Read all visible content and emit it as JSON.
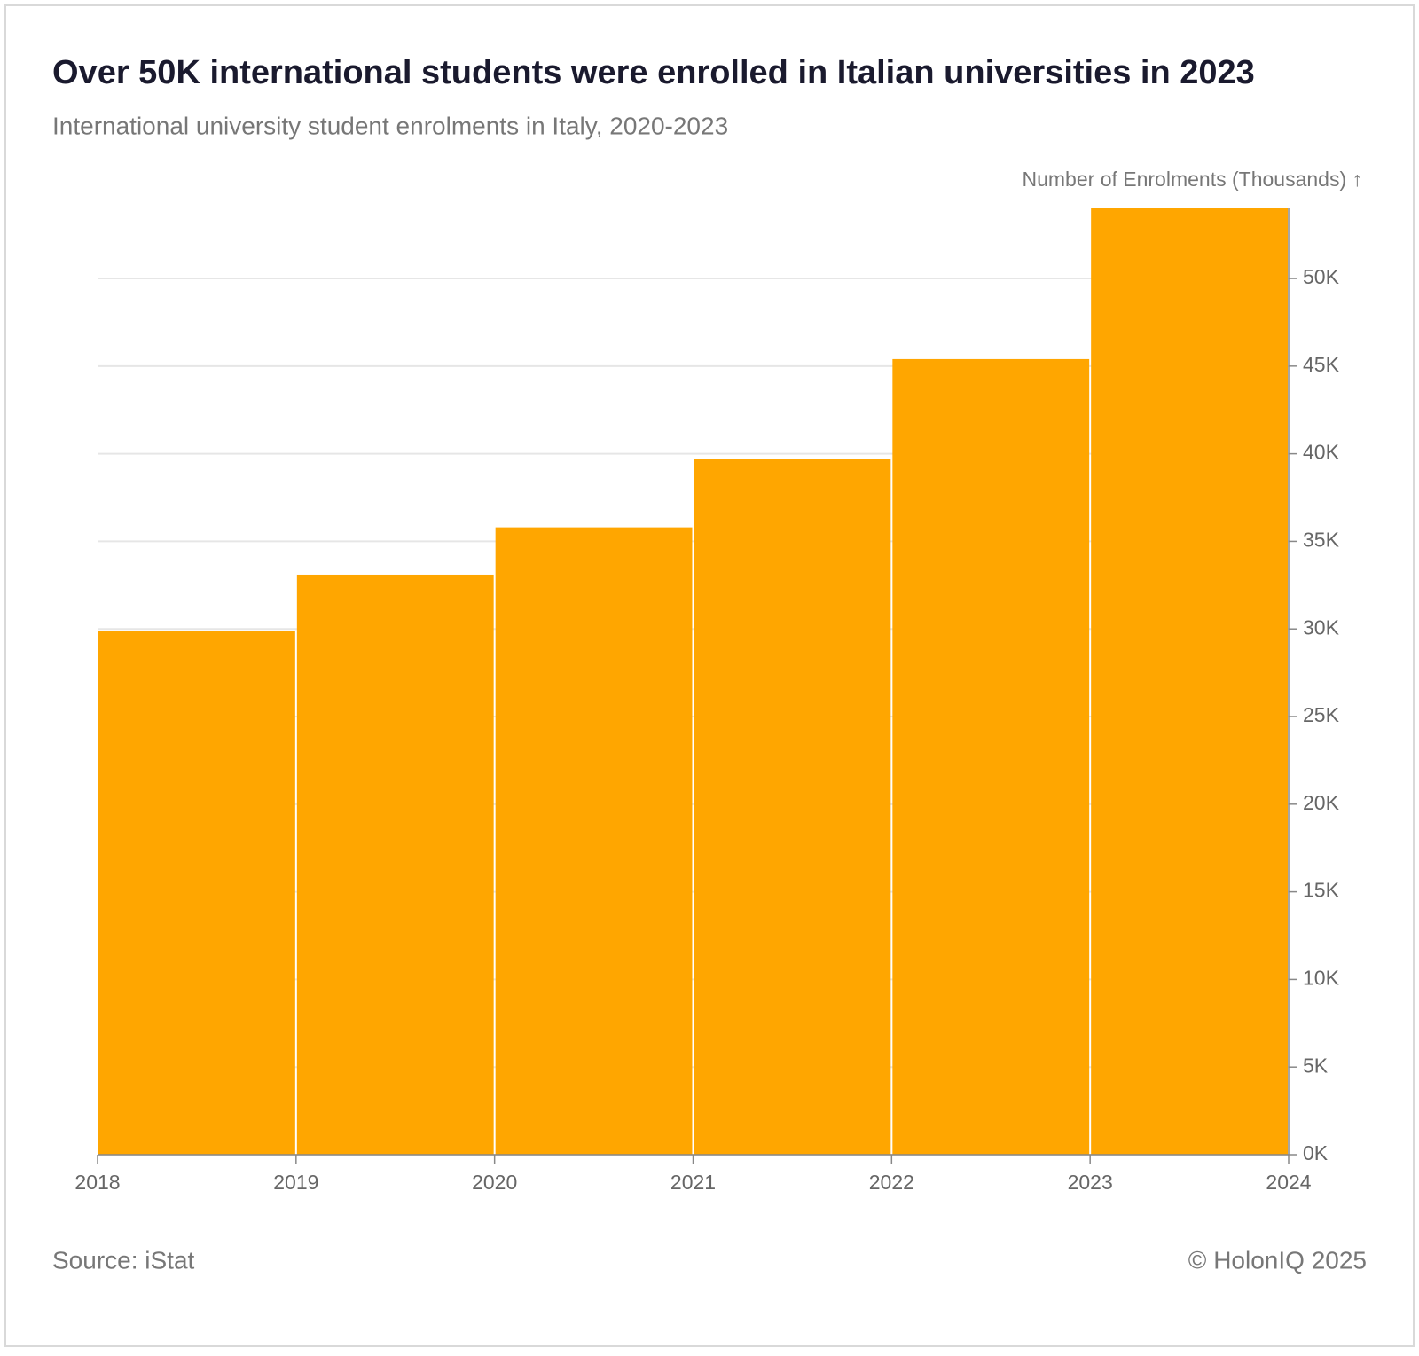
{
  "chart_data": {
    "type": "histogram",
    "title": "Over 50K international students were enrolled in Italian universities in 2023",
    "subtitle": "International university student enrolments in Italy, 2020-2023",
    "y_axis_label": "Number of Enrolments (Thousands) ↑",
    "source": "Source: iStat",
    "credit": "© HolonIQ 2025",
    "bins": [
      2018,
      2019,
      2020,
      2021,
      2022,
      2023,
      2024
    ],
    "values": [
      29.9,
      33.1,
      35.8,
      39.7,
      45.4,
      54.0
    ],
    "color": "#ffa600",
    "xlim": [
      2018,
      2024
    ],
    "xticks": [
      2018,
      2019,
      2020,
      2021,
      2022,
      2023,
      2024
    ],
    "ylim": [
      0,
      54
    ],
    "yticks": [
      {
        "value": 0,
        "label": "0K"
      },
      {
        "value": 5,
        "label": "5K"
      },
      {
        "value": 10,
        "label": "10K"
      },
      {
        "value": 15,
        "label": "15K"
      },
      {
        "value": 20,
        "label": "20K"
      },
      {
        "value": 25,
        "label": "25K"
      },
      {
        "value": 30,
        "label": "30K"
      },
      {
        "value": 35,
        "label": "35K"
      },
      {
        "value": 40,
        "label": "40K"
      },
      {
        "value": 45,
        "label": "45K"
      },
      {
        "value": 50,
        "label": "50K"
      }
    ],
    "grid": true
  }
}
